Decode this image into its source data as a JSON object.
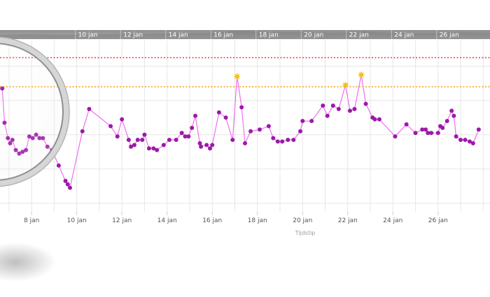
{
  "chart_data": {
    "type": "line",
    "x_unit": "date (January)",
    "x_ticks": [
      "8 jan",
      "10 jan",
      "12 jan",
      "14 jan",
      "16 jan",
      "18 jan",
      "20 jan",
      "22 jan",
      "24 jan",
      "26 jan"
    ],
    "navigator_ticks": [
      "10 jan",
      "12 jan",
      "14 jan",
      "16 jan",
      "18 jan",
      "20 jan",
      "22 jan",
      "24 jan",
      "26 jan"
    ],
    "x_range": [
      6.6,
      28.3
    ],
    "y_range": [
      0,
      1
    ],
    "y_note": "no y-axis labels are shown; values are relative levels between the lower grid area (0) and top of plot (1)",
    "thresholds": [
      {
        "style": "dotted",
        "color": "#e23b3b",
        "value": 0.9
      },
      {
        "style": "dotted",
        "color": "#f2a51a",
        "value": 0.73
      }
    ],
    "xlabel": "Tijdstip",
    "grid": true,
    "line_color": "#f06ef0",
    "marker_color": "#9b1aa8",
    "peak_marker_color": "#f5c21a",
    "magnifier": {
      "center_date": 7.8,
      "note": "magnifying lens over the left portion of the chart"
    },
    "series": [
      {
        "x": [
          6.7,
          6.8,
          6.95,
          7.05,
          7.15,
          7.3,
          7.45,
          7.6,
          7.75,
          7.9,
          8.05,
          8.2,
          8.35,
          8.5,
          8.7,
          8.9,
          9.2,
          9.5,
          9.6,
          9.7,
          10.25,
          10.55,
          11.5,
          11.8,
          12.0,
          12.3,
          12.4,
          12.55,
          12.7,
          12.9,
          13.0,
          13.2,
          13.4,
          13.55,
          13.85,
          14.1,
          14.4,
          14.65,
          14.8,
          14.95,
          15.1,
          15.25,
          15.45,
          15.5,
          15.75,
          15.9,
          16.0,
          16.3,
          16.6,
          16.9,
          17.1,
          17.3,
          17.45,
          17.7,
          18.1,
          18.5,
          18.7,
          18.9,
          19.1,
          19.35,
          19.6,
          19.9,
          20.0,
          20.4,
          20.9,
          21.1,
          21.35,
          21.6,
          21.9,
          22.1,
          22.3,
          22.6,
          22.8,
          23.1,
          23.2,
          23.4,
          24.1,
          24.6,
          25.0,
          25.3,
          25.45,
          25.55,
          25.7,
          26.0,
          26.1,
          26.2,
          26.4,
          26.6,
          26.7,
          26.8,
          27.0,
          27.2,
          27.4,
          27.55,
          27.8
        ],
        "y": [
          0.72,
          0.52,
          0.43,
          0.4,
          0.42,
          0.36,
          0.34,
          0.35,
          0.36,
          0.44,
          0.43,
          0.45,
          0.43,
          0.43,
          0.38,
          0.36,
          0.27,
          0.18,
          0.16,
          0.14,
          0.47,
          0.6,
          0.5,
          0.44,
          0.54,
          0.42,
          0.38,
          0.39,
          0.42,
          0.42,
          0.45,
          0.37,
          0.37,
          0.36,
          0.39,
          0.42,
          0.42,
          0.46,
          0.44,
          0.44,
          0.49,
          0.56,
          0.4,
          0.38,
          0.39,
          0.37,
          0.39,
          0.58,
          0.55,
          0.42,
          0.79,
          0.61,
          0.4,
          0.47,
          0.48,
          0.5,
          0.43,
          0.41,
          0.41,
          0.42,
          0.42,
          0.47,
          0.53,
          0.53,
          0.62,
          0.56,
          0.62,
          0.6,
          0.74,
          0.59,
          0.6,
          0.8,
          0.63,
          0.55,
          0.54,
          0.54,
          0.44,
          0.51,
          0.46,
          0.48,
          0.48,
          0.46,
          0.46,
          0.46,
          0.5,
          0.49,
          0.53,
          0.59,
          0.56,
          0.44,
          0.42,
          0.42,
          0.41,
          0.4,
          0.48
        ],
        "peaks": [
          17.1,
          21.9,
          22.6
        ]
      }
    ]
  }
}
